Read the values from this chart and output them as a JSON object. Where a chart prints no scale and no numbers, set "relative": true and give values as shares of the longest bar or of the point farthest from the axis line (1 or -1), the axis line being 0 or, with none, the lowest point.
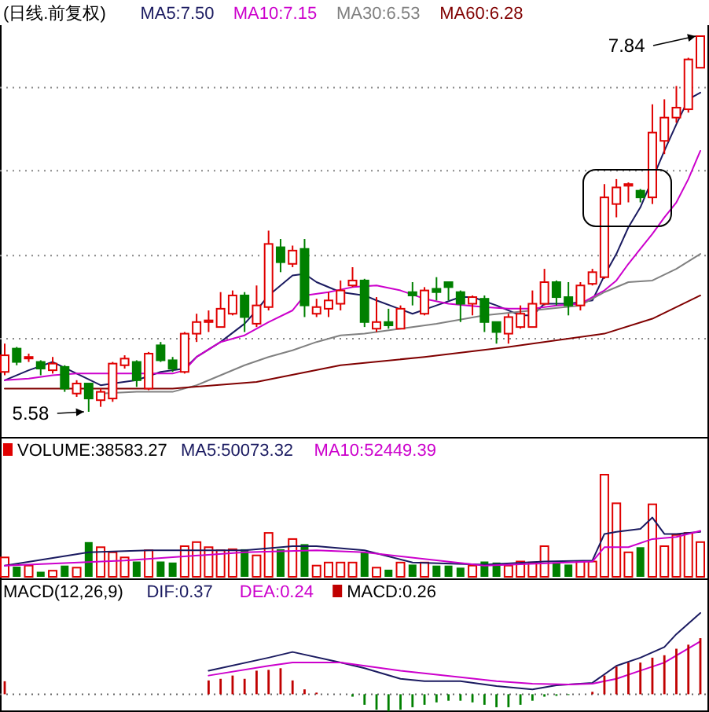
{
  "chart_data": [
    {
      "type": "candlestick",
      "title": "(日线.前复权)",
      "legend": "top",
      "grid": "y",
      "categories": [
        null,
        null,
        null,
        null,
        null,
        null,
        null,
        null,
        null,
        null,
        null,
        null,
        null,
        null,
        null,
        null,
        null,
        null,
        null,
        null,
        null,
        null,
        null,
        null,
        null,
        null,
        null,
        null,
        null,
        null,
        null,
        null,
        null,
        null,
        null,
        null,
        null,
        null,
        null,
        null,
        null,
        null,
        null,
        null,
        null,
        null,
        null,
        null,
        null,
        null,
        null,
        null,
        null,
        null,
        null,
        null,
        null,
        null,
        null
      ],
      "ohlc": [
        [
          5.82,
          5.99,
          5.8,
          5.92
        ],
        [
          5.96,
          5.97,
          5.86,
          5.88
        ],
        [
          5.91,
          5.93,
          5.88,
          5.91
        ],
        [
          5.88,
          5.89,
          5.8,
          5.84
        ],
        [
          5.83,
          5.91,
          5.81,
          5.87
        ],
        [
          5.85,
          5.86,
          5.7,
          5.72
        ],
        [
          5.69,
          5.77,
          5.67,
          5.75
        ],
        [
          5.75,
          5.75,
          5.58,
          5.66
        ],
        [
          5.65,
          5.72,
          5.61,
          5.7
        ],
        [
          5.66,
          5.88,
          5.64,
          5.87
        ],
        [
          5.86,
          5.92,
          5.84,
          5.9
        ],
        [
          5.88,
          5.89,
          5.73,
          5.77
        ],
        [
          5.72,
          5.94,
          5.71,
          5.93
        ],
        [
          5.98,
          6.0,
          5.88,
          5.89
        ],
        [
          5.89,
          5.91,
          5.82,
          5.84
        ],
        [
          5.82,
          6.06,
          5.81,
          6.05
        ],
        [
          6.05,
          6.17,
          6.0,
          6.12
        ],
        [
          6.12,
          6.19,
          6.06,
          6.13
        ],
        [
          6.09,
          6.3,
          6.09,
          6.2
        ],
        [
          6.17,
          6.31,
          6.16,
          6.28
        ],
        [
          6.28,
          6.3,
          6.06,
          6.15
        ],
        [
          6.11,
          6.34,
          6.09,
          6.22
        ],
        [
          6.21,
          6.67,
          6.19,
          6.59
        ],
        [
          6.57,
          6.62,
          6.42,
          6.48
        ],
        [
          6.47,
          6.58,
          6.45,
          6.55
        ],
        [
          6.56,
          6.62,
          6.15,
          6.22
        ],
        [
          6.17,
          6.26,
          6.15,
          6.21
        ],
        [
          6.2,
          6.3,
          6.15,
          6.25
        ],
        [
          6.23,
          6.37,
          6.19,
          6.31
        ],
        [
          6.34,
          6.45,
          6.33,
          6.37
        ],
        [
          6.37,
          6.38,
          6.09,
          6.12
        ],
        [
          6.08,
          6.27,
          6.06,
          6.12
        ],
        [
          6.12,
          6.2,
          6.08,
          6.1
        ],
        [
          6.08,
          6.22,
          6.08,
          6.2
        ],
        [
          6.3,
          6.36,
          6.22,
          6.28
        ],
        [
          6.17,
          6.33,
          6.16,
          6.31
        ],
        [
          6.32,
          6.39,
          6.25,
          6.3
        ],
        [
          6.36,
          6.36,
          6.25,
          6.33
        ],
        [
          6.3,
          6.31,
          6.12,
          6.23
        ],
        [
          6.23,
          6.28,
          6.16,
          6.27
        ],
        [
          6.26,
          6.28,
          6.06,
          6.12
        ],
        [
          6.12,
          6.12,
          5.99,
          6.06
        ],
        [
          6.05,
          6.17,
          5.99,
          6.15
        ],
        [
          6.09,
          6.22,
          6.08,
          6.17
        ],
        [
          6.09,
          6.31,
          6.09,
          6.23
        ],
        [
          6.23,
          6.44,
          6.22,
          6.36
        ],
        [
          6.36,
          6.37,
          6.22,
          6.27
        ],
        [
          6.27,
          6.36,
          6.16,
          6.22
        ],
        [
          6.22,
          6.36,
          6.19,
          6.34
        ],
        [
          6.35,
          6.44,
          6.34,
          6.42
        ],
        [
          6.39,
          6.95,
          6.38,
          6.87
        ],
        [
          6.83,
          6.98,
          6.75,
          6.93
        ],
        [
          6.94,
          6.96,
          6.84,
          6.95
        ],
        [
          6.91,
          6.92,
          6.84,
          6.87
        ],
        [
          6.87,
          7.43,
          6.83,
          7.26
        ],
        [
          7.21,
          7.46,
          7.13,
          7.35
        ],
        [
          7.35,
          7.54,
          7.32,
          7.41
        ],
        [
          7.4,
          7.71,
          7.38,
          7.7
        ],
        [
          7.65,
          7.84,
          7.65,
          7.84
        ]
      ],
      "series": [
        {
          "name": "MA5:7.50",
          "type": "line",
          "color": "#1a1a60",
          "values": [
            5.77,
            null,
            5.83,
            null,
            5.88,
            null,
            5.81,
            null,
            5.74,
            5.75,
            null,
            5.77,
            null,
            5.82,
            null,
            5.84,
            5.91,
            null,
            6.0,
            null,
            6.11,
            6.19,
            6.28,
            6.34,
            6.4,
            6.41,
            6.36,
            null,
            6.3,
            null,
            6.28,
            6.25,
            null,
            null,
            6.17,
            null,
            6.22,
            null,
            6.27,
            6.27,
            null,
            6.22,
            null,
            6.16,
            6.16,
            6.23,
            null,
            6.23,
            null,
            6.25,
            6.4,
            6.53,
            6.69,
            6.81,
            null,
            7.15,
            7.31,
            7.46,
            7.5
          ]
        },
        {
          "name": "MA10:7.15",
          "type": "line",
          "color": "#cc00cc",
          "values": [
            5.77,
            null,
            5.78,
            null,
            5.8,
            null,
            5.81,
            null,
            5.81,
            null,
            null,
            5.81,
            null,
            null,
            5.81,
            5.83,
            5.91,
            null,
            6.0,
            null,
            6.04,
            null,
            6.12,
            null,
            6.19,
            6.28,
            null,
            6.3,
            null,
            6.33,
            null,
            6.34,
            null,
            6.31,
            null,
            6.26,
            null,
            6.23,
            null,
            null,
            6.21,
            null,
            6.2,
            null,
            6.2,
            null,
            6.22,
            null,
            6.23,
            6.27,
            6.31,
            6.37,
            6.47,
            6.56,
            6.65,
            6.75,
            6.84,
            6.98,
            7.15
          ]
        },
        {
          "name": "MA30:6.53",
          "type": "line",
          "color": "#808080",
          "values": [
            null,
            null,
            null,
            null,
            null,
            null,
            null,
            null,
            5.69,
            null,
            null,
            5.7,
            null,
            null,
            5.7,
            null,
            5.74,
            null,
            5.8,
            null,
            5.86,
            null,
            5.91,
            null,
            5.95,
            null,
            6.0,
            null,
            6.04,
            null,
            6.05,
            null,
            null,
            6.08,
            null,
            null,
            6.11,
            null,
            null,
            null,
            6.16,
            null,
            null,
            null,
            6.19,
            null,
            null,
            null,
            6.22,
            null,
            6.3,
            null,
            6.36,
            null,
            6.37,
            null,
            6.44,
            null,
            6.53
          ]
        },
        {
          "name": "MA60:6.28",
          "type": "line",
          "color": "#800000",
          "values": [
            5.72,
            null,
            null,
            null,
            null,
            null,
            null,
            null,
            null,
            null,
            null,
            null,
            null,
            null,
            5.72,
            null,
            null,
            null,
            null,
            null,
            null,
            5.76,
            null,
            null,
            null,
            null,
            null,
            null,
            5.86,
            null,
            null,
            null,
            null,
            null,
            null,
            5.91,
            null,
            null,
            null,
            null,
            null,
            null,
            5.97,
            null,
            null,
            null,
            null,
            null,
            null,
            null,
            6.05,
            null,
            null,
            null,
            6.14,
            null,
            null,
            null,
            6.28
          ]
        }
      ],
      "yticks": [
        {
          "value": 7.53,
          "label": null
        },
        {
          "value": 7.03,
          "label": null
        },
        {
          "value": 6.52,
          "label": null
        },
        {
          "value": 6.02,
          "label": null
        }
      ],
      "annotations": [
        "7.84",
        "5.58"
      ]
    },
    {
      "type": "bar",
      "relative": true,
      "legend": "top",
      "categories": [
        null,
        null,
        null,
        null,
        null,
        null,
        null,
        null,
        null,
        null,
        null,
        null,
        null,
        null,
        null,
        null,
        null,
        null,
        null,
        null,
        null,
        null,
        null,
        null,
        null,
        null,
        null,
        null,
        null,
        null,
        null,
        null,
        null,
        null,
        null,
        null,
        null,
        null,
        null,
        null,
        null,
        null,
        null,
        null,
        null,
        null,
        null,
        null,
        null,
        null,
        null,
        null,
        null,
        null,
        null,
        null,
        null,
        null,
        null
      ],
      "series": [
        {
          "name": "VOLUME:38583.27",
          "type": "bar",
          "values": [
            0.19,
            0.1,
            0.11,
            0.05,
            0.06,
            0.11,
            0.09,
            0.34,
            0.29,
            0.24,
            0.19,
            0.15,
            0.26,
            0.15,
            0.14,
            0.3,
            0.34,
            0.29,
            0.26,
            0.27,
            0.27,
            0.21,
            0.43,
            0.27,
            0.37,
            0.32,
            0.11,
            0.14,
            0.14,
            0.14,
            0.24,
            0.09,
            0.07,
            0.14,
            0.12,
            0.14,
            0.11,
            0.11,
            0.09,
            0.11,
            0.15,
            0.14,
            0.11,
            0.15,
            0.14,
            0.3,
            0.14,
            0.12,
            0.15,
            0.15,
            1,
            0.72,
            0.24,
            0.29,
            0.71,
            0.3,
            0.41,
            0.43,
            0.34
          ],
          "colors": [
            "#e00000",
            "#008000",
            "#e00000",
            "#008000",
            "#e00000",
            "#008000",
            "#e00000",
            "#008000",
            "#e00000",
            "#e00000",
            "#e00000",
            "#008000",
            "#e00000",
            "#008000",
            "#008000",
            "#e00000",
            "#e00000",
            "#e00000",
            "#e00000",
            "#e00000",
            "#008000",
            "#e00000",
            "#e00000",
            "#008000",
            "#e00000",
            "#008000",
            "#e00000",
            "#e00000",
            "#e00000",
            "#e00000",
            "#008000",
            "#e00000",
            "#008000",
            "#e00000",
            "#008000",
            "#e00000",
            "#008000",
            "#008000",
            "#008000",
            "#e00000",
            "#008000",
            "#008000",
            "#e00000",
            "#e00000",
            "#e00000",
            "#e00000",
            "#008000",
            "#008000",
            "#e00000",
            "#e00000",
            "#e00000",
            "#e00000",
            "#e00000",
            "#008000",
            "#e00000",
            "#e00000",
            "#e00000",
            "#e00000",
            "#e00000"
          ]
        },
        {
          "name": "MA5:50073.32",
          "type": "line",
          "color": "#1a1a60",
          "values": [
            0.11,
            null,
            null,
            null,
            null,
            null,
            null,
            0.24,
            null,
            null,
            null,
            null,
            0.26,
            null,
            null,
            null,
            null,
            null,
            null,
            null,
            0.26,
            null,
            null,
            null,
            0.3,
            null,
            0.3,
            null,
            null,
            null,
            0.26,
            null,
            null,
            null,
            0.14,
            null,
            null,
            null,
            null,
            null,
            0.12,
            null,
            null,
            null,
            null,
            0.15,
            null,
            null,
            null,
            0.16,
            0.42,
            0.44,
            null,
            0.47,
            0.58,
            0.42,
            0.42,
            null,
            0.44
          ]
        },
        {
          "name": "MA10:52449.39",
          "type": "line",
          "color": "#cc00cc",
          "values": [
            0.11,
            null,
            null,
            null,
            null,
            null,
            null,
            null,
            null,
            null,
            0.16,
            null,
            null,
            null,
            null,
            null,
            null,
            null,
            null,
            null,
            0.24,
            null,
            null,
            null,
            null,
            null,
            0.26,
            null,
            null,
            null,
            0.24,
            null,
            null,
            null,
            null,
            null,
            null,
            null,
            null,
            null,
            0.11,
            null,
            null,
            null,
            null,
            null,
            null,
            null,
            null,
            0.15,
            0.29,
            null,
            0.29,
            null,
            0.37,
            null,
            0.39,
            null,
            0.45
          ]
        }
      ]
    },
    {
      "type": "bar",
      "relative": true,
      "legend": "top",
      "title": "MACD(12,26,9)",
      "ref_lines": [
        {
          "axis": "y",
          "value": 0,
          "line_style": "dotted",
          "color": "#666666"
        }
      ],
      "categories": [
        null,
        null,
        null,
        null,
        null,
        null,
        null,
        null,
        null,
        null,
        null,
        null,
        null,
        null,
        null,
        null,
        null,
        null,
        null,
        null,
        null,
        null,
        null,
        null,
        null,
        null,
        null,
        null,
        null,
        null,
        null,
        null,
        null,
        null,
        null,
        null,
        null,
        null,
        null,
        null,
        null,
        null,
        null,
        null,
        null,
        null,
        null,
        null,
        null,
        null,
        null,
        null,
        null,
        null,
        null,
        null,
        null,
        null,
        null
      ],
      "series": [
        {
          "name": "DIF:0.37",
          "type": "line",
          "color": "#1a1a60",
          "values": [
            null,
            null,
            null,
            null,
            null,
            null,
            null,
            null,
            null,
            null,
            null,
            null,
            null,
            null,
            null,
            null,
            null,
            0.29,
            null,
            null,
            null,
            null,
            0.45,
            null,
            0.52,
            null,
            null,
            null,
            0.39,
            null,
            0.32,
            null,
            null,
            0.19,
            null,
            0.16,
            null,
            null,
            0.16,
            null,
            null,
            0.1,
            null,
            null,
            0.06,
            null,
            0.11,
            null,
            null,
            0.14,
            null,
            0.35,
            null,
            0.45,
            null,
            0.58,
            0.74,
            null,
            1
          ]
        },
        {
          "name": "DEA:0.24",
          "type": "line",
          "color": "#cc00cc",
          "values": [
            null,
            null,
            null,
            null,
            null,
            null,
            null,
            null,
            null,
            null,
            null,
            null,
            null,
            null,
            null,
            null,
            null,
            0.23,
            null,
            null,
            null,
            null,
            0.35,
            null,
            0.39,
            null,
            null,
            null,
            0.39,
            null,
            null,
            null,
            null,
            0.29,
            null,
            null,
            null,
            null,
            0.21,
            null,
            null,
            0.16,
            null,
            null,
            0.13,
            null,
            null,
            0.12,
            null,
            0.13,
            null,
            0.19,
            null,
            0.29,
            null,
            0.39,
            null,
            null,
            0.65
          ]
        },
        {
          "name": "MACD:0.26",
          "type": "bar",
          "values": [
            0.16,
            null,
            null,
            null,
            null,
            null,
            null,
            null,
            null,
            null,
            null,
            null,
            null,
            null,
            null,
            null,
            null,
            0.17,
            0.19,
            0.23,
            0.19,
            0.29,
            0.3,
            0.32,
            0.17,
            0.06,
            0.02,
            null,
            null,
            -0.03,
            -0.13,
            -0.19,
            -0.21,
            -0.19,
            -0.16,
            -0.13,
            -0.1,
            -0.08,
            -0.08,
            -0.1,
            -0.13,
            -0.16,
            -0.16,
            -0.13,
            -0.08,
            -0.03,
            -0.02,
            -0.01,
            null,
            0.03,
            0.23,
            0.34,
            0.39,
            0.39,
            0.45,
            0.48,
            0.56,
            0.61,
            0.69
          ],
          "colors": [
            "#c00000",
            null,
            null,
            null,
            null,
            null,
            null,
            null,
            null,
            null,
            null,
            null,
            null,
            null,
            null,
            null,
            null,
            "#c00000",
            "#c00000",
            "#c00000",
            "#c00000",
            "#c00000",
            "#c00000",
            "#c00000",
            "#c00000",
            "#c00000",
            "#c00000",
            null,
            null,
            "#008000",
            "#008000",
            "#008000",
            "#008000",
            "#008000",
            "#008000",
            "#008000",
            "#008000",
            "#008000",
            "#008000",
            "#008000",
            "#008000",
            "#008000",
            "#008000",
            "#008000",
            "#008000",
            "#008000",
            "#008000",
            "#008000",
            "#008000",
            "#c00000",
            "#c00000",
            "#c00000",
            "#c00000",
            "#c00000",
            "#c00000",
            "#c00000",
            "#c00000",
            "#c00000",
            "#c00000"
          ]
        }
      ]
    }
  ]
}
